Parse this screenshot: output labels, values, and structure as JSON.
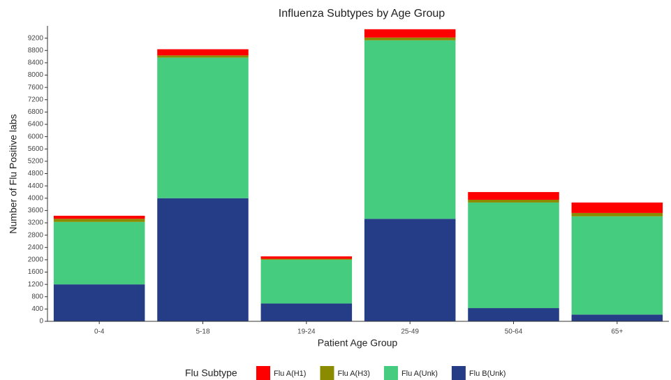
{
  "chart_data": {
    "type": "stacked_bar",
    "title": "Influenza Subtypes by Age Group",
    "x_label": "Patient Age Group",
    "y_label": "Number of Flu Positive labs",
    "legend_title": "Flu Subtype",
    "legend_position": "bottom",
    "categories": [
      "0-4",
      "5-18",
      "19-24",
      "25-49",
      "50-64",
      "65+"
    ],
    "series": [
      {
        "name": "Flu B(Unk)",
        "color": "#253d87",
        "values": [
          1200,
          4000,
          580,
          3330,
          430,
          220
        ]
      },
      {
        "name": "Flu A(Unk)",
        "color": "#45cc7f",
        "values": [
          2030,
          4570,
          1420,
          5800,
          3430,
          3190
        ]
      },
      {
        "name": "Flu A(H3)",
        "color": "#8b8b00",
        "values": [
          100,
          70,
          30,
          90,
          90,
          110
        ]
      },
      {
        "name": "Flu A(H1)",
        "color": "#ff0000",
        "values": [
          100,
          200,
          80,
          270,
          250,
          340
        ]
      }
    ],
    "legend_order": [
      3,
      2,
      1,
      0
    ],
    "ylim": [
      0,
      9600
    ],
    "yticks": [
      0,
      400,
      800,
      1200,
      1600,
      2000,
      2400,
      2800,
      3200,
      3600,
      4000,
      4400,
      4800,
      5200,
      5600,
      6000,
      6400,
      6800,
      7200,
      7600,
      8000,
      8400,
      8800,
      9200
    ]
  }
}
